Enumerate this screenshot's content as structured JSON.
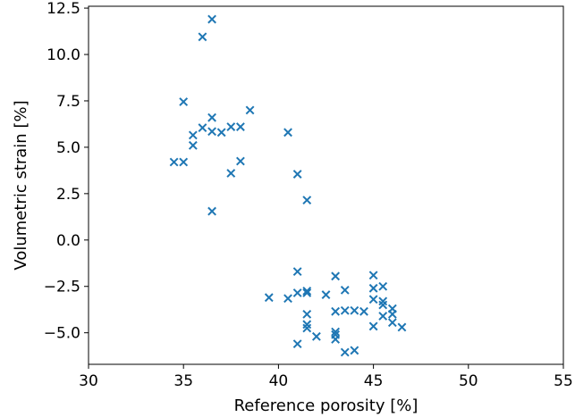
{
  "chart_data": {
    "type": "scatter",
    "title": "",
    "xlabel": "Reference porosity [%]",
    "ylabel": "Volumetric strain [%]",
    "xlim": [
      30,
      55
    ],
    "ylim": [
      -6.7,
      12.6
    ],
    "xticks": [
      30,
      35,
      40,
      45,
      50,
      55
    ],
    "xtick_labels": [
      "30",
      "35",
      "40",
      "45",
      "50",
      "55"
    ],
    "yticks": [
      -5.0,
      -2.5,
      0.0,
      2.5,
      5.0,
      7.5,
      10.0,
      12.5
    ],
    "ytick_labels": [
      "−5.0",
      "−2.5",
      "0.0",
      "2.5",
      "5.0",
      "7.5",
      "10.0",
      "12.5"
    ],
    "grid": false,
    "marker": "x",
    "color": "#1f77b4",
    "series": [
      {
        "points": [
          [
            36.5,
            11.9
          ],
          [
            36.0,
            10.95
          ],
          [
            35.0,
            7.45
          ],
          [
            36.5,
            6.6
          ],
          [
            38.5,
            7.0
          ],
          [
            36.0,
            6.05
          ],
          [
            36.5,
            5.85
          ],
          [
            37.0,
            5.8
          ],
          [
            37.5,
            6.1
          ],
          [
            38.0,
            6.1
          ],
          [
            35.5,
            5.65
          ],
          [
            35.5,
            5.1
          ],
          [
            34.5,
            4.2
          ],
          [
            35.0,
            4.2
          ],
          [
            38.0,
            4.25
          ],
          [
            37.5,
            3.6
          ],
          [
            40.5,
            5.8
          ],
          [
            41.0,
            3.55
          ],
          [
            41.5,
            2.15
          ],
          [
            36.5,
            1.55
          ],
          [
            41.0,
            -1.7
          ],
          [
            39.5,
            -3.1
          ],
          [
            40.5,
            -3.15
          ],
          [
            41.0,
            -2.85
          ],
          [
            41.5,
            -2.85
          ],
          [
            41.5,
            -2.75
          ],
          [
            42.5,
            -2.95
          ],
          [
            43.0,
            -1.95
          ],
          [
            43.5,
            -2.7
          ],
          [
            45.0,
            -1.9
          ],
          [
            45.5,
            -2.5
          ],
          [
            45.0,
            -2.6
          ],
          [
            45.0,
            -3.2
          ],
          [
            45.5,
            -3.3
          ],
          [
            45.5,
            -3.5
          ],
          [
            46.0,
            -3.7
          ],
          [
            46.0,
            -4.0
          ],
          [
            45.5,
            -4.1
          ],
          [
            46.0,
            -4.45
          ],
          [
            46.5,
            -4.7
          ],
          [
            45.0,
            -4.65
          ],
          [
            44.5,
            -3.85
          ],
          [
            44.0,
            -3.8
          ],
          [
            43.5,
            -3.8
          ],
          [
            43.0,
            -3.85
          ],
          [
            41.5,
            -4.0
          ],
          [
            41.5,
            -4.55
          ],
          [
            41.5,
            -4.75
          ],
          [
            42.0,
            -5.2
          ],
          [
            41.0,
            -5.6
          ],
          [
            43.0,
            -4.95
          ],
          [
            43.0,
            -5.1
          ],
          [
            43.0,
            -5.35
          ],
          [
            43.5,
            -6.05
          ],
          [
            44.0,
            -5.95
          ]
        ]
      }
    ]
  }
}
